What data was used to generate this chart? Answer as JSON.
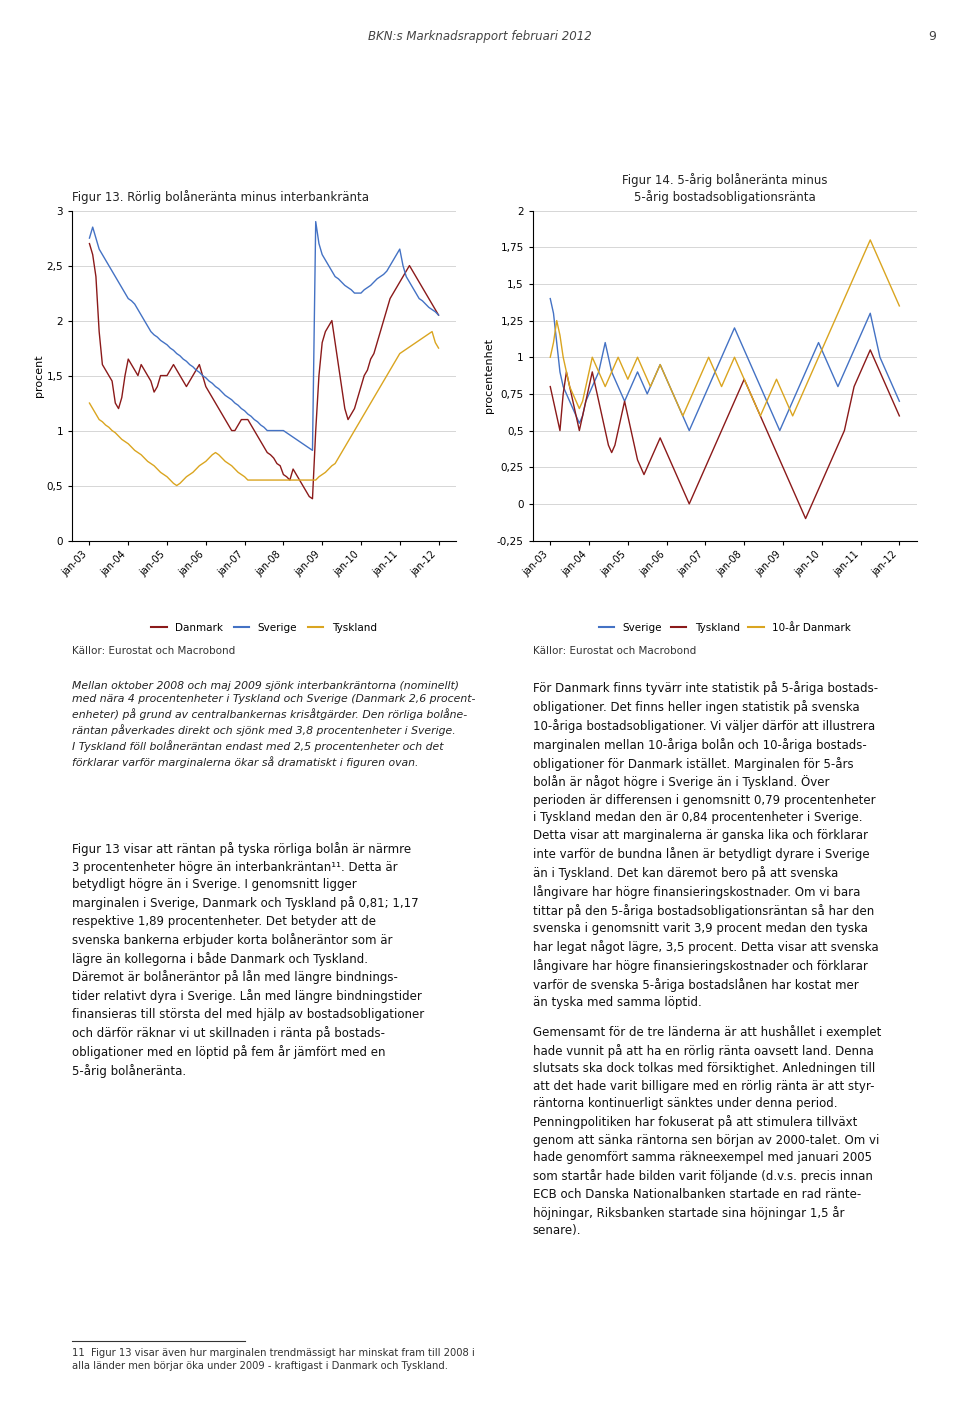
{
  "fig13_title": "Figur 13. Rörlig bolåneränta minus interbankränta",
  "fig14_title": "Figur 14. 5-årig bolåneränta minus\n5-årig bostadsobligationsränta",
  "fig13_ylabel": "procent",
  "fig14_ylabel": "procentenhet",
  "fig13_ylim": [
    0,
    3
  ],
  "fig14_ylim": [
    -0.25,
    2.0
  ],
  "fig13_yticks": [
    0,
    0.5,
    1,
    1.5,
    2,
    2.5,
    3
  ],
  "fig14_yticks": [
    -0.25,
    0,
    0.25,
    0.5,
    0.75,
    1,
    1.25,
    1.5,
    1.75,
    2.0
  ],
  "x_labels": [
    "jan-03",
    "jan-04",
    "jan-05",
    "jan-06",
    "jan-07",
    "jan-08",
    "jan-09",
    "jan-10",
    "jan-11",
    "jan-12"
  ],
  "color_danmark": "#8B1A1A",
  "color_sverige": "#4472C4",
  "color_tyskland": "#DAA520",
  "color_sverige2": "#4472C4",
  "color_tyskland2": "#8B1A1A",
  "color_10ar_danmark": "#DAA520",
  "sources_text": "Källor: Eurostat och Macrobond",
  "background": "#ffffff",
  "page_header": "BKN:s Marknadsrapport februari 2012",
  "page_number": "9",
  "italic_text": "Mellan oktober 2008 och maj 2009 sjönk interbankräntorna (nominellt)\nmed nära 4 procentenheter i Tyskland och Sverige (Danmark 2,6 procent-\nenheter) på grund av centralbankernas krisåtgärder. Den rörliga bolåne-\nräntan påverkades direkt och sjönk med 3,8 procentenheter i Sverige.\nI Tyskland föll bolåneräntan endast med 2,5 procentenheter och det\nförklarar varför marginalerna ökar så dramatiskt i figuren ovan.",
  "left_body2_lines": [
    "Figur 13 visar att räntan på tyska rörliga bolån är närmre",
    "3 procentenheter högre än interbankräntan¹¹. Detta är",
    "betydligt högre än i Sverige. I genomsnitt ligger",
    "marginalen i Sverige, Danmark och Tyskland på 0,81; 1,17",
    "respektive 1,89 procentenheter. Det betyder att de",
    "svenska bankerna erbjuder korta bolåneräntor som är",
    "lägre än kollegorna i både Danmark och Tyskland.",
    "Däremot är bolåneräntor på lån med längre bindnings-",
    "tider relativt dyra i Sverige. Lån med längre bindningstider",
    "finansieras till största del med hjälp av bostadsobligationer",
    "och därför räknar vi ut skillnaden i ränta på bostads-",
    "obligationer med en löptid på fem år jämfört med en",
    "5-årig bolåneränta."
  ],
  "right_body1_lines": [
    "För Danmark finns tyvärr inte statistik på 5-åriga bostads-",
    "obligationer. Det finns heller ingen statistik på svenska",
    "10-åriga bostadsobligationer. Vi väljer därför att illustrera",
    "marginalen mellan 10-åriga bolån och 10-åriga bostads-",
    "obligationer för Danmark istället. Marginalen för 5-års",
    "bolån är något högre i Sverige än i Tyskland. Över",
    "perioden är differensen i genomsnitt 0,79 procentenheter",
    "i Tyskland medan den är 0,84 procentenheter i Sverige.",
    "Detta visar att marginalerna är ganska lika och förklarar",
    "inte varför de bundna lånen är betydligt dyrare i Sverige",
    "än i Tyskland. Det kan däremot bero på att svenska",
    "långivare har högre finansieringskostnader. Om vi bara",
    "tittar på den 5-åriga bostadsobligationsräntan så har den",
    "svenska i genomsnitt varit 3,9 procent medan den tyska",
    "har legat något lägre, 3,5 procent. Detta visar att svenska",
    "långivare har högre finansieringskostnader och förklarar",
    "varför de svenska 5-åriga bostadslånen har kostat mer",
    "än tyska med samma löptid."
  ],
  "right_body2_lines": [
    "Gemensamt för de tre länderna är att hushållet i exemplet",
    "hade vunnit på att ha en rörlig ränta oavsett land. Denna",
    "slutsats ska dock tolkas med försiktighet. Anledningen till",
    "att det hade varit billigare med en rörlig ränta är att styr-",
    "räntorna kontinuerligt sänktes under denna period.",
    "Penningpolitiken har fokuserat på att stimulera tillväxt",
    "genom att sänka räntorna sen början av 2000-talet. Om vi",
    "hade genomfört samma räkneexempel med januari 2005",
    "som startår hade bilden varit följande (d.v.s. precis innan",
    "ECB och Danska Nationalbanken startade en rad ränte-",
    "höjningar, Riksbanken startade sina höjningar 1,5 år",
    "senare)."
  ],
  "footnote_line1": "11  Figur 13 visar även hur marginalen trendmässigt har minskat fram till 2008 i",
  "footnote_line2": "alla länder men börjar öka under 2009 - kraftigast i Danmark och Tyskland."
}
